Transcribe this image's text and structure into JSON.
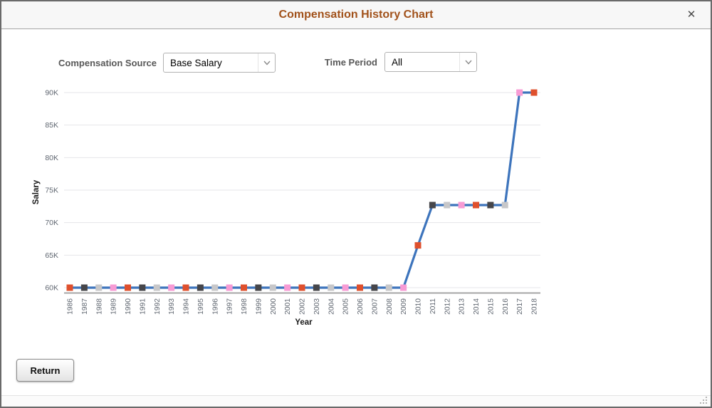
{
  "window": {
    "title": "Compensation History Chart",
    "close_icon": "✕"
  },
  "controls": {
    "source_label": "Compensation Source",
    "source_value": "Base Salary",
    "period_label": "Time Period",
    "period_value": "All"
  },
  "footer": {
    "return_label": "Return"
  },
  "chart_data": {
    "type": "line",
    "title": "",
    "xlabel": "Year",
    "ylabel": "Salary",
    "categories": [
      "1986",
      "1987",
      "1988",
      "1989",
      "1990",
      "1991",
      "1992",
      "1993",
      "1994",
      "1995",
      "1996",
      "1997",
      "1998",
      "1999",
      "2000",
      "2001",
      "2002",
      "2003",
      "2004",
      "2005",
      "2006",
      "2007",
      "2008",
      "2009",
      "2010",
      "2011",
      "2012",
      "2013",
      "2014",
      "2015",
      "2016",
      "2017",
      "2018"
    ],
    "values": [
      60000,
      60000,
      60000,
      60000,
      60000,
      60000,
      60000,
      60000,
      60000,
      60000,
      60000,
      60000,
      60000,
      60000,
      60000,
      60000,
      60000,
      60000,
      60000,
      60000,
      60000,
      60000,
      60000,
      60000,
      66500,
      72700,
      72700,
      72700,
      72700,
      72700,
      72700,
      90000,
      90000
    ],
    "y_tick_labels": [
      "60K",
      "65K",
      "70K",
      "75K",
      "80K",
      "85K",
      "90K"
    ],
    "ylim": [
      60000,
      90000
    ],
    "y_tick_step": 5000,
    "grid": true,
    "legend": false,
    "marker_shape": "square",
    "line_color": "#3D74BC",
    "marker_color_cycle": [
      "#DF502D",
      "#46464A",
      "#C7C7C9",
      "#F79BD4"
    ],
    "grid_color": "#E4E4EA",
    "axis_line_color": "#9A9A9A",
    "tick_label_color": "#5F6670"
  }
}
